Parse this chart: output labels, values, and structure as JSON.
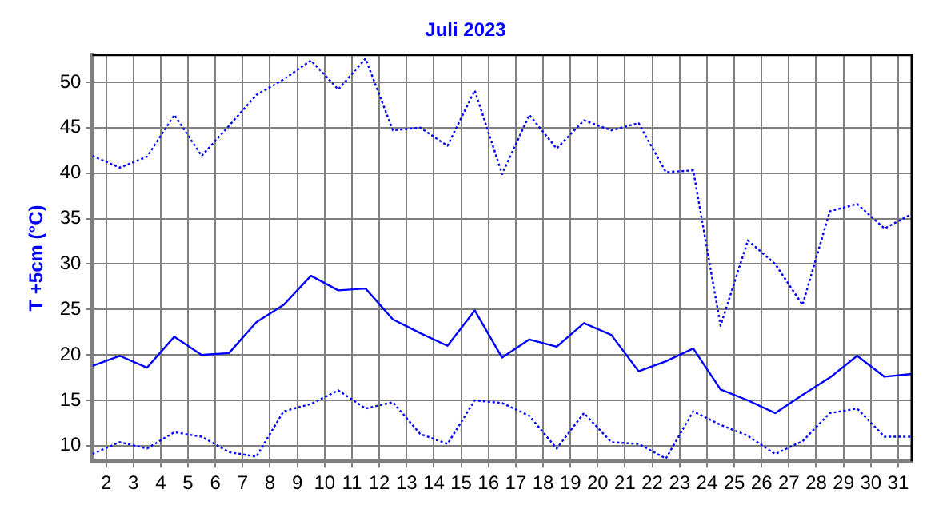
{
  "chart_data": {
    "type": "line",
    "title": "Juli 2023",
    "ylabel": "T +5cm (°C)",
    "x": [
      1.5,
      2.5,
      3.5,
      4.5,
      5.5,
      6.5,
      7.5,
      8.5,
      9.5,
      10.5,
      11.5,
      12.5,
      13.5,
      14.5,
      15.5,
      16.5,
      17.5,
      18.5,
      19.5,
      20.5,
      21.5,
      22.5,
      23.5,
      24.5,
      25.5,
      26.5,
      27.5,
      28.5,
      29.5,
      30.5,
      31.5
    ],
    "series": [
      {
        "color": "#0000ff",
        "line_style": "dotted",
        "values": [
          41.9,
          40.6,
          41.8,
          46.4,
          41.9,
          45.2,
          48.6,
          50.3,
          52.4,
          49.2,
          52.6,
          44.7,
          45.0,
          43.0,
          49.1,
          39.9,
          46.4,
          42.7,
          45.8,
          44.7,
          45.5,
          40.1,
          40.3,
          23.2,
          32.6,
          30.0,
          25.5,
          35.8,
          36.6,
          33.9,
          35.5
        ]
      },
      {
        "color": "#0000ff",
        "line_style": "solid",
        "values": [
          18.8,
          19.9,
          18.6,
          22.0,
          20.0,
          20.2,
          23.6,
          25.5,
          28.7,
          27.1,
          27.3,
          23.9,
          22.4,
          21.0,
          24.9,
          19.7,
          21.7,
          20.9,
          23.5,
          22.2,
          18.2,
          19.3,
          20.7,
          16.2,
          15.0,
          13.6,
          15.6,
          17.5,
          19.9,
          17.6,
          17.9
        ]
      },
      {
        "color": "#0000ff",
        "line_style": "dotted",
        "values": [
          9.1,
          10.4,
          9.7,
          11.5,
          11.0,
          9.3,
          8.8,
          13.8,
          14.6,
          16.1,
          14.1,
          14.8,
          11.3,
          10.2,
          15.0,
          14.7,
          13.3,
          9.7,
          13.6,
          10.4,
          10.2,
          8.6,
          13.8,
          12.3,
          11.1,
          9.1,
          10.5,
          13.6,
          14.1,
          11.0,
          11.0
        ]
      }
    ],
    "xlim": [
      1.5,
      31.5
    ],
    "xticks": [
      2,
      3,
      4,
      5,
      6,
      7,
      8,
      9,
      10,
      11,
      12,
      13,
      14,
      15,
      16,
      17,
      18,
      19,
      20,
      21,
      22,
      23,
      24,
      25,
      26,
      27,
      28,
      29,
      30,
      31
    ],
    "ylim": [
      8.3,
      53
    ],
    "yticks": [
      10,
      15,
      20,
      25,
      30,
      35,
      40,
      45,
      50
    ],
    "grid": true,
    "legend": false,
    "marker": "none"
  }
}
